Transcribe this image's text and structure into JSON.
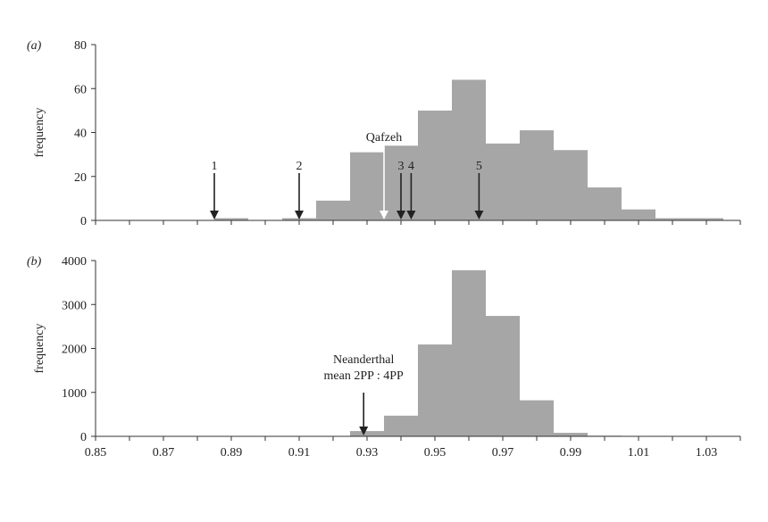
{
  "chart_data": [
    {
      "type": "bar",
      "panel_label": "(a)",
      "ylabel": "frequency",
      "xlim": [
        0.85,
        1.04
      ],
      "ylim": [
        0,
        80
      ],
      "yticks": [
        "0",
        "20",
        "40",
        "60",
        "80"
      ],
      "bin_width": 0.01,
      "bins": [
        {
          "x0": 0.885,
          "value": 1
        },
        {
          "x0": 0.905,
          "value": 1
        },
        {
          "x0": 0.915,
          "value": 9
        },
        {
          "x0": 0.925,
          "value": 31
        },
        {
          "x0": 0.935,
          "value": 34
        },
        {
          "x0": 0.945,
          "value": 50
        },
        {
          "x0": 0.955,
          "value": 64
        },
        {
          "x0": 0.965,
          "value": 35
        },
        {
          "x0": 0.975,
          "value": 41
        },
        {
          "x0": 0.985,
          "value": 32
        },
        {
          "x0": 0.995,
          "value": 15
        },
        {
          "x0": 1.005,
          "value": 5
        },
        {
          "x0": 1.015,
          "value": 1
        },
        {
          "x0": 1.025,
          "value": 1
        }
      ],
      "markers": [
        {
          "label": "1",
          "x": 0.885
        },
        {
          "label": "2",
          "x": 0.91
        },
        {
          "label": "3",
          "x": 0.94
        },
        {
          "label": "4",
          "x": 0.943
        },
        {
          "label": "5",
          "x": 0.963
        }
      ],
      "reference": {
        "label": "Qafzeh",
        "x": 0.935
      }
    },
    {
      "type": "bar",
      "panel_label": "(b)",
      "ylabel": "frequency",
      "xlim": [
        0.85,
        1.04
      ],
      "ylim": [
        0,
        4000
      ],
      "yticks": [
        "0",
        "1000",
        "2000",
        "3000",
        "4000"
      ],
      "xticks": [
        "0.85",
        "0.87",
        "0.89",
        "0.91",
        "0.93",
        "0.95",
        "0.97",
        "0.99",
        "1.01",
        "1.03"
      ],
      "bin_width": 0.01,
      "bins": [
        {
          "x0": 0.925,
          "value": 120
        },
        {
          "x0": 0.935,
          "value": 470
        },
        {
          "x0": 0.945,
          "value": 2090
        },
        {
          "x0": 0.955,
          "value": 3780
        },
        {
          "x0": 0.965,
          "value": 2740
        },
        {
          "x0": 0.975,
          "value": 820
        },
        {
          "x0": 0.985,
          "value": 80
        },
        {
          "x0": 0.995,
          "value": 15
        }
      ],
      "markers": [
        {
          "label": "Neanderthal\nmean 2PP : 4PP",
          "x": 0.929
        }
      ]
    }
  ],
  "colors": {
    "bar": "#a6a6a6",
    "axis": "#333333",
    "arrow": "#222222",
    "reference_arrow": "#ffffff"
  }
}
